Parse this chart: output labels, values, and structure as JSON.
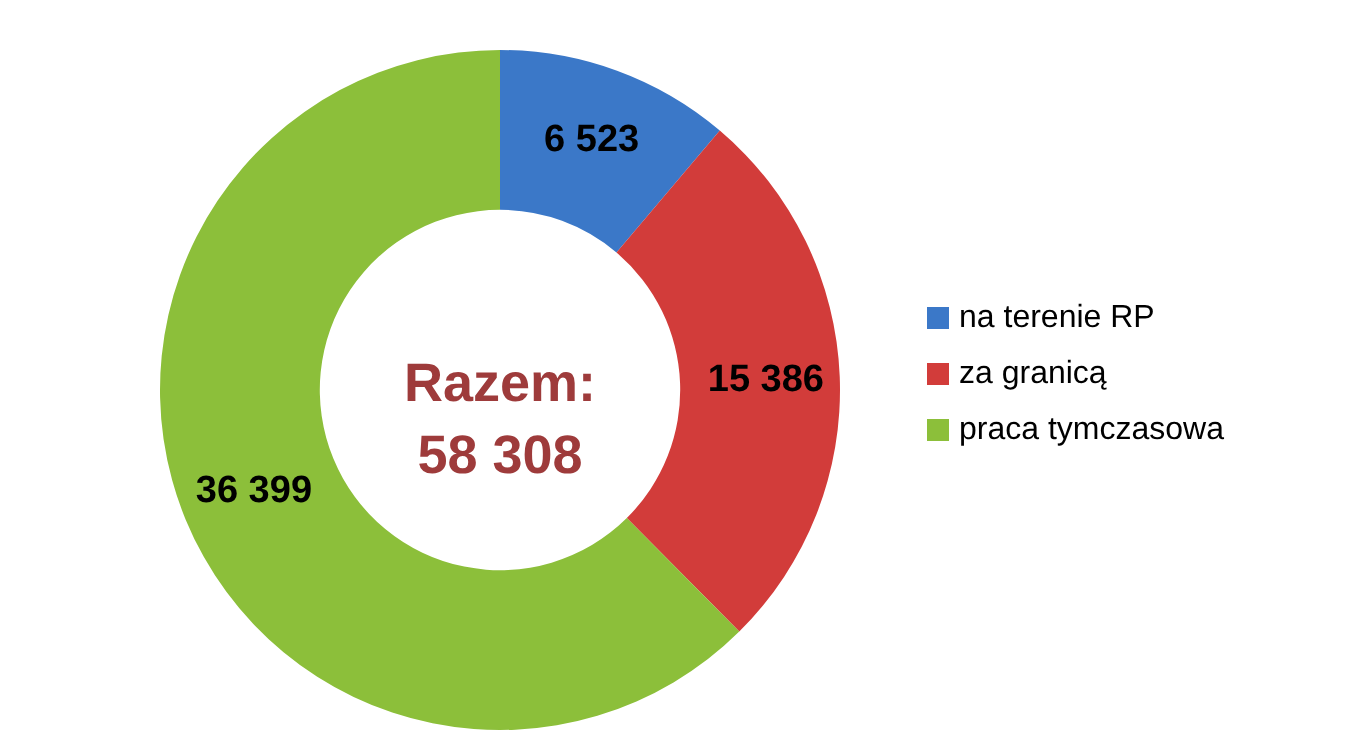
{
  "chart_data": {
    "type": "donut",
    "categories": [
      "na terenie RP",
      "za granicą",
      "praca tymczasowa"
    ],
    "values": [
      6523,
      15386,
      36399
    ],
    "colors": [
      "#3b78c8",
      "#d23c3a",
      "#8cbf3a"
    ],
    "value_labels": [
      "6 523",
      "15 386",
      "36 399"
    ],
    "annotations": [
      "Razem:",
      "58 308"
    ],
    "legend": "right"
  }
}
